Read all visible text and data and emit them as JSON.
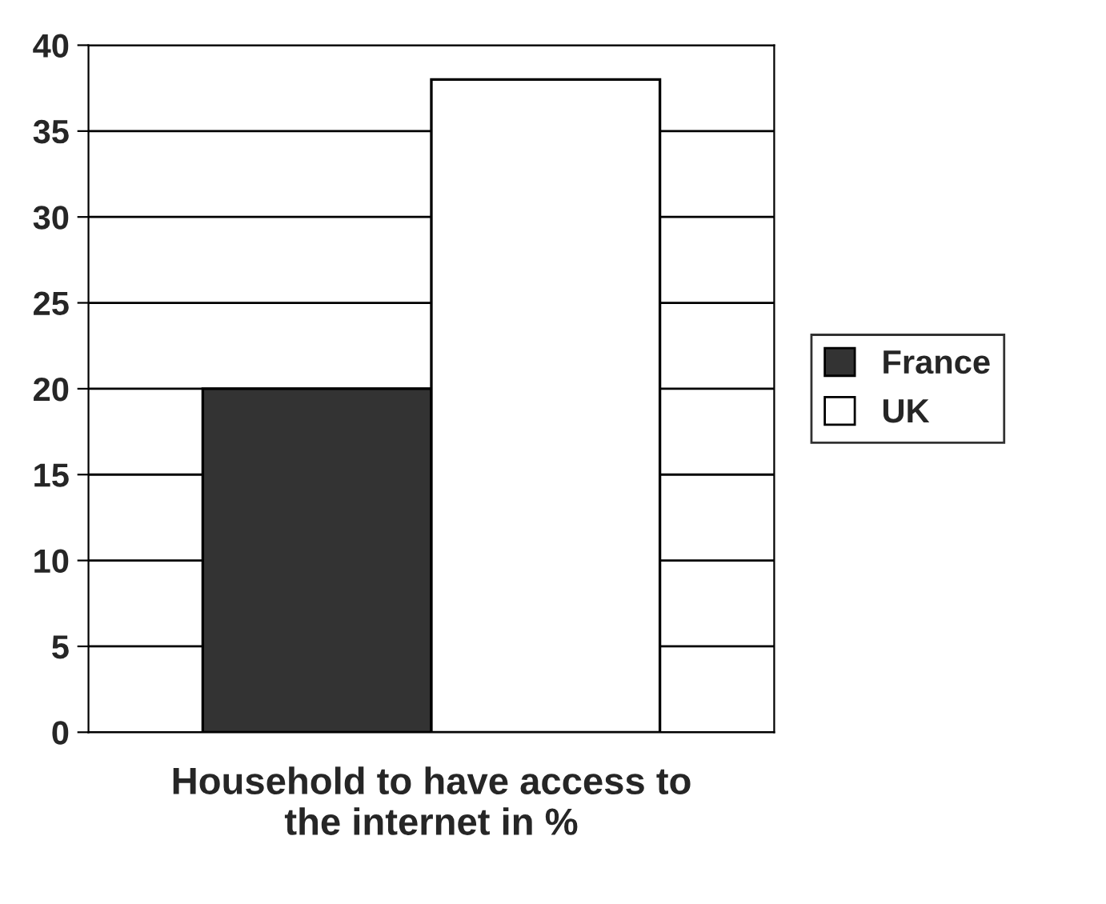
{
  "chart_data": {
    "type": "bar",
    "xlabel": "Household to have access to\nthe internet in %",
    "categories": [
      null
    ],
    "series": [
      {
        "name": "France",
        "color": "#333333",
        "values": [
          20
        ]
      },
      {
        "name": "UK",
        "color": "#ffffff",
        "values": [
          38
        ]
      }
    ],
    "ylim": [
      0,
      40
    ],
    "yticks": [
      0,
      5,
      10,
      15,
      20,
      25,
      30,
      35,
      40
    ],
    "grid": "y",
    "legend": "right"
  }
}
